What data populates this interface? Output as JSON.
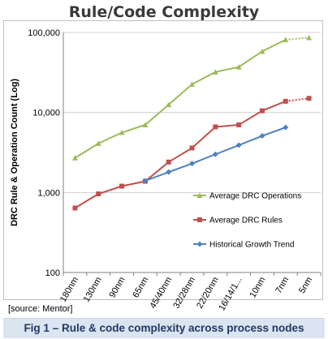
{
  "chart_data": {
    "type": "line",
    "title": "Rule/Code Complexity",
    "ylabel": "DRC Rule  & Operation Count (Log)",
    "xlabel": "",
    "y_scale": "log",
    "ylim": [
      100,
      100000
    ],
    "y_ticks": [
      "100",
      "1,000",
      "10,000",
      "100,000"
    ],
    "y_tick_values": [
      100,
      1000,
      10000,
      100000
    ],
    "categories": [
      "180nm",
      "130nm",
      "90nm",
      "65nm",
      "45/40nm",
      "32/28nm",
      "22/20nm",
      "16/14/1...",
      "10nm",
      "7nm",
      "5nm"
    ],
    "grid": "horizontal",
    "legend_position": "lower-right",
    "series": [
      {
        "name": "Average DRC Operations",
        "color": "#9bbb59",
        "marker": "triangle",
        "values": [
          2700,
          4100,
          5600,
          7000,
          12500,
          22500,
          32000,
          37000,
          58000,
          81000,
          86000
        ],
        "dashed_last_segment": true
      },
      {
        "name": "Average DRC Rules",
        "color": "#c0504d",
        "marker": "square",
        "values": [
          640,
          960,
          1200,
          1380,
          2400,
          3600,
          6600,
          7000,
          10500,
          13800,
          15000
        ],
        "dashed_last_segment": true
      },
      {
        "name": "Historical Growth Trend",
        "color": "#4f81bd",
        "marker": "diamond",
        "values": [
          null,
          null,
          null,
          1400,
          1800,
          2300,
          3000,
          3900,
          5100,
          6500,
          null
        ],
        "dashed_last_segment": false
      }
    ]
  },
  "source_note": "[source: Mentor]",
  "caption": "Fig 1 – Rule & code complexity across process nodes"
}
